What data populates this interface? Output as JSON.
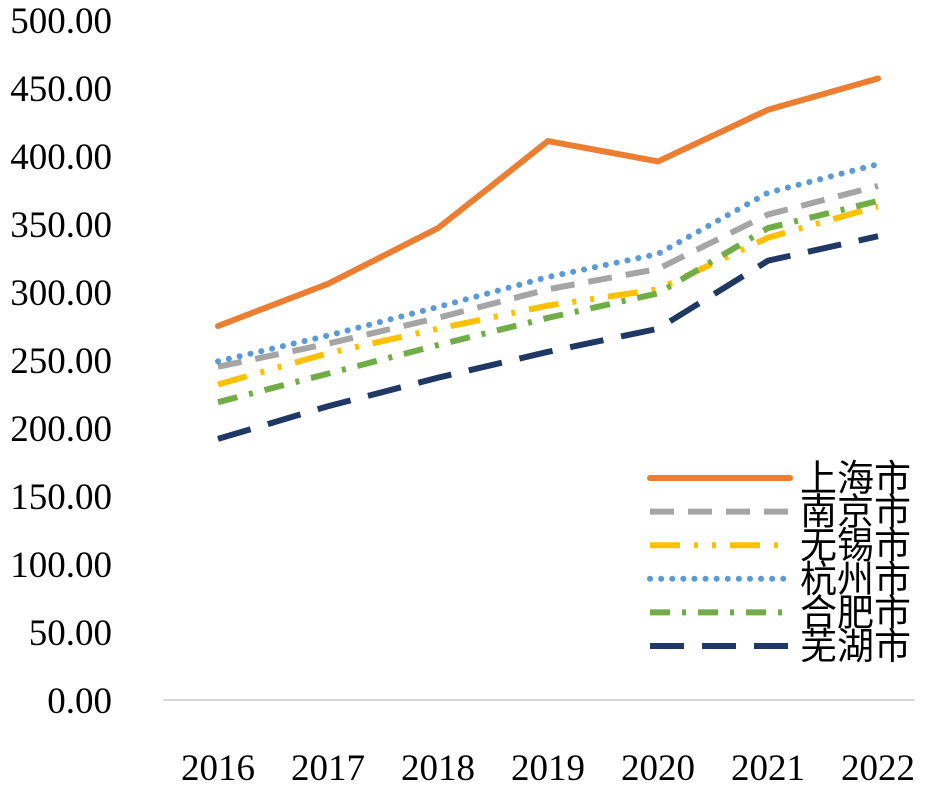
{
  "chart_data": {
    "type": "line",
    "title": "",
    "xlabel": "",
    "ylabel": "",
    "categories": [
      "2016",
      "2017",
      "2018",
      "2019",
      "2020",
      "2021",
      "2022"
    ],
    "ylim": [
      0,
      500
    ],
    "yticks": [
      "0.00",
      "50.00",
      "100.00",
      "150.00",
      "200.00",
      "250.00",
      "300.00",
      "350.00",
      "400.00",
      "450.00",
      "500.00"
    ],
    "grid": false,
    "legend_position": "bottom-right",
    "series": [
      {
        "name": "上海市",
        "color": "#ED7D31",
        "dash": "solid",
        "values": [
          275,
          306,
          347,
          411,
          396,
          434,
          457
        ]
      },
      {
        "name": "南京市",
        "color": "#A5A5A5",
        "dash": "dash",
        "values": [
          245,
          262,
          281,
          302,
          317,
          357,
          378
        ]
      },
      {
        "name": "无锡市",
        "color": "#FFC000",
        "dash": "longdashdotdot",
        "values": [
          232,
          255,
          273,
          290,
          302,
          340,
          363
        ]
      },
      {
        "name": "杭州市",
        "color": "#5B9BD5",
        "dash": "dot",
        "values": [
          249,
          268,
          289,
          311,
          328,
          373,
          394
        ]
      },
      {
        "name": "合肥市",
        "color": "#70AD47",
        "dash": "dashdot",
        "values": [
          219,
          240,
          261,
          281,
          299,
          347,
          367
        ]
      },
      {
        "name": "芜湖市",
        "color": "#203864",
        "dash": "longdash",
        "values": [
          192,
          216,
          237,
          256,
          273,
          323,
          341
        ]
      }
    ]
  }
}
